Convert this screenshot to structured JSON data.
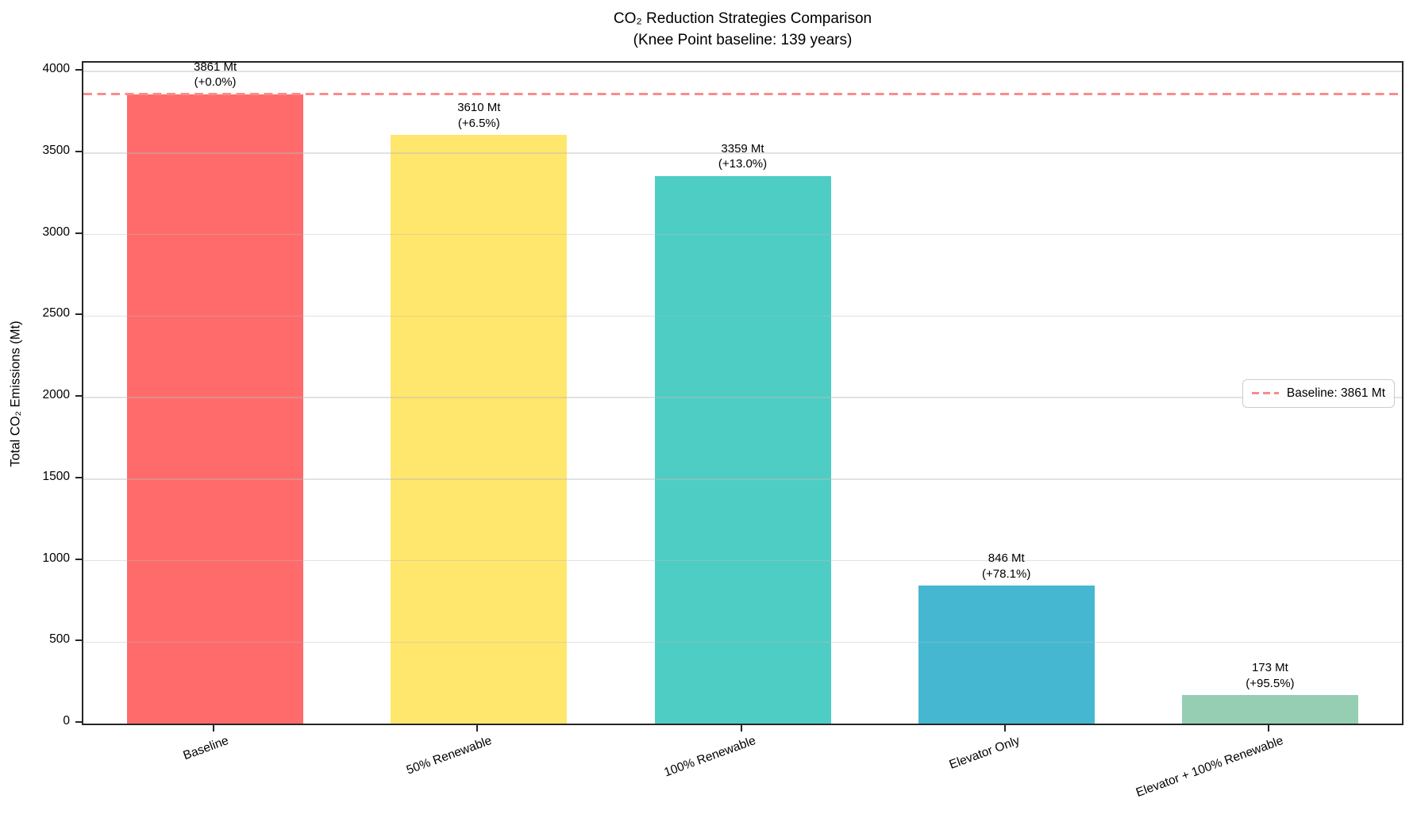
{
  "chart_data": {
    "type": "bar",
    "title": "CO₂ Reduction Strategies Comparison",
    "subtitle": "(Knee Point baseline: 139 years)",
    "ylabel": "Total CO₂ Emissions (Mt)",
    "xlabel": "",
    "categories": [
      "Baseline",
      "50% Renewable",
      "100% Renewable",
      "Elevator Only",
      "Elevator + 100% Renewable"
    ],
    "values": [
      3861,
      3610,
      3359,
      846,
      173
    ],
    "bar_labels": [
      [
        "3861 Mt",
        "(+0.0%)"
      ],
      [
        "3610 Mt",
        "(+6.5%)"
      ],
      [
        "3359 Mt",
        "(+13.0%)"
      ],
      [
        "846 Mt",
        "(+78.1%)"
      ],
      [
        "173 Mt",
        "(+95.5%)"
      ]
    ],
    "bar_colors": [
      "#FF6B6B",
      "#FFE66D",
      "#4ECDC4",
      "#45B7D1",
      "#96CEB4"
    ],
    "ylim": [
      0,
      4054
    ],
    "yticks": [
      0,
      500,
      1000,
      1500,
      2000,
      2500,
      3000,
      3500,
      4000
    ],
    "grid": "horizontal",
    "legend_position": "center right",
    "baseline": {
      "value": 3861,
      "legend_label": "Baseline: 3861 Mt",
      "color": "#fb8b8b",
      "style": "dashed"
    }
  }
}
